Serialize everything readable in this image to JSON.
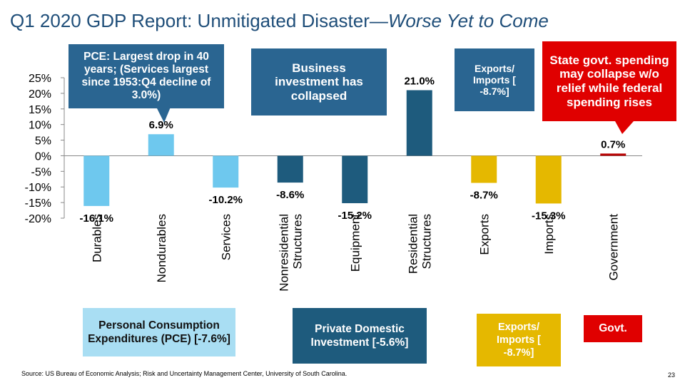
{
  "title": {
    "main": "Q1 2020 GDP Report: Unmitigated Disaster—",
    "italic": "Worse Yet to Come"
  },
  "chart_data": {
    "type": "bar",
    "categories": [
      "Durables",
      "Nondurables",
      "Services",
      "Nonresidential Structures",
      "Equipment",
      "Residential Structures",
      "Exports",
      "Imports",
      "Government"
    ],
    "category_lines": [
      [
        "Durables"
      ],
      [
        "Nondurables"
      ],
      [
        "Services"
      ],
      [
        "Nonresidential",
        "Structures"
      ],
      [
        "Equipment"
      ],
      [
        "Residential",
        "Structures"
      ],
      [
        "Exports"
      ],
      [
        "Imports"
      ],
      [
        "Government"
      ]
    ],
    "values": [
      -16.1,
      6.9,
      -10.2,
      -8.6,
      -15.2,
      21.0,
      -8.7,
      -15.3,
      0.7
    ],
    "data_labels": [
      "-16.1%",
      "6.9%",
      "-10.2%",
      "-8.6%",
      "-15.2%",
      "21.0%",
      "-8.7%",
      "-15.3%",
      "0.7%"
    ],
    "bar_colors": [
      "#6ec8ee",
      "#6ec8ee",
      "#6ec8ee",
      "#1e5b7d",
      "#1e5b7d",
      "#1e5b7d",
      "#e5b800",
      "#e5b800",
      "#b80000"
    ],
    "ylim": [
      -20,
      25
    ],
    "yticks": [
      25,
      20,
      15,
      10,
      5,
      0,
      -5,
      -10,
      -15,
      -20
    ],
    "ytick_labels": [
      "25%",
      "20%",
      "15%",
      "10%",
      "5%",
      "0%",
      "-5%",
      "-10%",
      "-15%",
      "-20%"
    ]
  },
  "callouts": {
    "pce": "PCE: Largest drop in 40 years; (Services largest since 1953:Q4 decline of 3.0%)",
    "business": "Business investment has collapsed",
    "exports": "Exports/ Imports   [ -8.7%]",
    "state": "State govt. spending may collapse w/o relief while federal spending rises"
  },
  "groups": {
    "pce": "Personal Consumption Expenditures (PCE) [-7.6%]",
    "investment": "Private Domestic Investment [-5.6%]",
    "exports": "Exports/ Imports   [ -8.7%]",
    "govt": "Govt."
  },
  "colors": {
    "title": "#1f4e79",
    "light_blue": "#6ec8ee",
    "dark_blue": "#1e5b7d",
    "callout_blue": "#2a6591",
    "gold": "#e5b800",
    "red": "#e00000",
    "group_light": "#a9def3"
  },
  "source": "Source: US Bureau of Economic Analysis; Risk and Uncertainty Management Center, University of South Carolina.",
  "page_number": "23"
}
